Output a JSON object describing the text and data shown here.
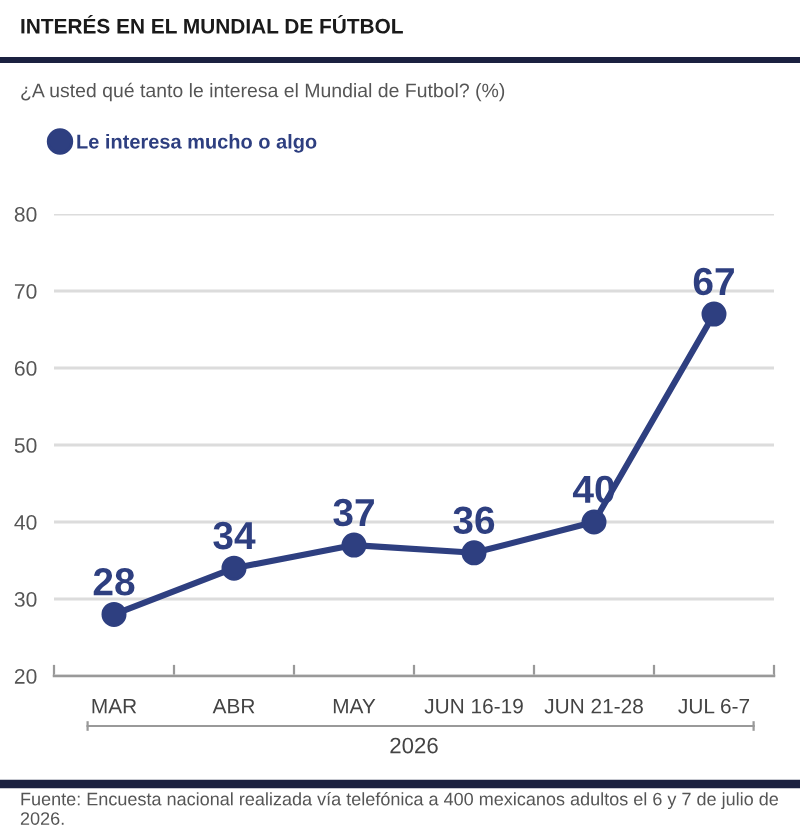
{
  "chart_data": {
    "type": "line",
    "title": "INTERÉS EN EL MUNDIAL DE FÚTBOL",
    "subtitle": "¿A usted qué tanto le interesa el Mundial de Futbol? (%)",
    "xlabel": "2026",
    "categories": [
      "MAR",
      "ABR",
      "MAY",
      "JUN 16-19",
      "JUN 21-28",
      "JUL 6-7"
    ],
    "series": [
      {
        "name": "Le interesa mucho o algo",
        "color": "#2e3f80",
        "values": [
          28,
          34,
          37,
          36,
          40,
          67
        ]
      }
    ],
    "ylim": [
      20,
      80
    ],
    "yticks": [
      20,
      30,
      40,
      50,
      60,
      70,
      80
    ],
    "grid": "y",
    "legend": "top left",
    "marker": "circle",
    "line_style": "solid",
    "data_labels": true,
    "annotations": [
      "Fuente: Encuesta nacional realizada vía telefónica a 400 mexicanos adultos el 6 y 7 de julio de 2026."
    ]
  }
}
